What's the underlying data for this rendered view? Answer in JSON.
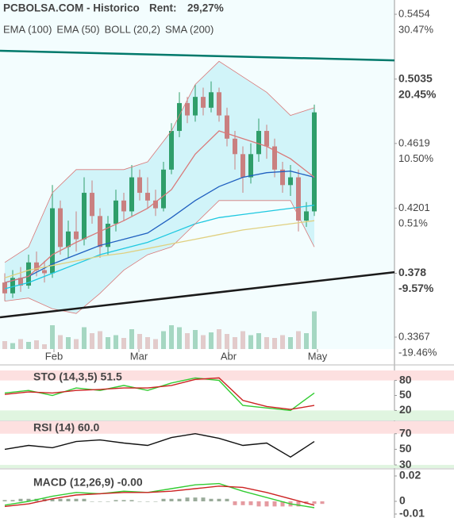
{
  "header": {
    "title": "PCBOLSA.COM - Historico",
    "rent_label": "Rent:",
    "rent_value": "29,27%"
  },
  "chart_data": [
    {
      "type": "candlestick",
      "xlim": [
        -0.6,
        49.1
      ],
      "open": [
        0.372,
        0.365,
        0.375,
        0.37,
        0.385,
        0.38,
        0.378,
        0.42,
        0.395,
        0.405,
        0.4,
        0.43,
        0.415,
        0.395,
        0.41,
        0.425,
        0.418,
        0.44,
        0.43,
        0.425,
        0.42,
        0.445,
        0.47,
        0.488,
        0.48,
        0.492,
        0.485,
        0.495,
        0.48,
        0.465,
        0.455,
        0.44,
        0.455,
        0.47,
        0.46,
        0.445,
        0.435,
        0.44,
        0.412,
        0.418
      ],
      "high": [
        0.378,
        0.38,
        0.382,
        0.39,
        0.392,
        0.386,
        0.435,
        0.425,
        0.412,
        0.418,
        0.44,
        0.438,
        0.42,
        0.415,
        0.432,
        0.43,
        0.448,
        0.445,
        0.44,
        0.432,
        0.45,
        0.475,
        0.495,
        0.492,
        0.5,
        0.498,
        0.502,
        0.498,
        0.485,
        0.47,
        0.46,
        0.462,
        0.478,
        0.474,
        0.465,
        0.45,
        0.448,
        0.445,
        0.424,
        0.487
      ],
      "low": [
        0.36,
        0.362,
        0.366,
        0.368,
        0.376,
        0.372,
        0.375,
        0.39,
        0.388,
        0.392,
        0.396,
        0.41,
        0.388,
        0.39,
        0.405,
        0.412,
        0.415,
        0.425,
        0.42,
        0.415,
        0.418,
        0.442,
        0.466,
        0.475,
        0.476,
        0.48,
        0.482,
        0.476,
        0.46,
        0.445,
        0.43,
        0.436,
        0.45,
        0.452,
        0.44,
        0.43,
        0.428,
        0.405,
        0.408,
        0.415
      ],
      "close": [
        0.365,
        0.375,
        0.37,
        0.385,
        0.38,
        0.378,
        0.42,
        0.395,
        0.405,
        0.4,
        0.43,
        0.415,
        0.395,
        0.41,
        0.425,
        0.418,
        0.44,
        0.43,
        0.425,
        0.42,
        0.445,
        0.47,
        0.488,
        0.48,
        0.492,
        0.485,
        0.495,
        0.48,
        0.465,
        0.455,
        0.44,
        0.455,
        0.47,
        0.46,
        0.445,
        0.435,
        0.44,
        0.412,
        0.418,
        0.482
      ],
      "up_color": "#2f9e6a",
      "down_color": "#c98080",
      "volume": {
        "ylim": [
          0,
          100
        ],
        "values": [
          20,
          15,
          25,
          18,
          22,
          12,
          60,
          35,
          30,
          25,
          55,
          40,
          45,
          30,
          35,
          28,
          50,
          38,
          30,
          25,
          45,
          60,
          55,
          40,
          48,
          35,
          42,
          50,
          38,
          30,
          45,
          35,
          40,
          30,
          28,
          35,
          30,
          45,
          40,
          95
        ]
      },
      "ylim": [
        0.3367,
        0.5454
      ],
      "yticks": [
        0.5454,
        0.5035,
        0.4619,
        0.4201,
        0.378,
        0.3367
      ],
      "y2lim": [
        -19.46,
        30.47
      ],
      "y2ticks": [
        {
          "value": 30.47,
          "label": "30.47%"
        },
        {
          "value": 20.45,
          "label": "20.45%"
        },
        {
          "value": 10.5,
          "label": "10.50%"
        },
        {
          "value": 0.51,
          "label": "0.51%"
        },
        {
          "value": -9.57,
          "label": "-9.57%"
        },
        {
          "value": -19.46,
          "label": "-19.46%"
        }
      ],
      "xticks": [
        {
          "value": 6.2,
          "label": "Feb"
        },
        {
          "value": 16.9,
          "label": "Mar"
        },
        {
          "value": 28.2,
          "label": "Abr"
        },
        {
          "value": 39.4,
          "label": "May"
        }
      ],
      "overlays": [
        {
          "name": "EMA (100)",
          "color": "#1ec8e0",
          "x": [
            0,
            3,
            6,
            9,
            12,
            15,
            18,
            21,
            24,
            27,
            30,
            33,
            36,
            39
          ],
          "values": [
            0.368,
            0.372,
            0.378,
            0.384,
            0.39,
            0.394,
            0.398,
            0.404,
            0.41,
            0.414,
            0.416,
            0.418,
            0.42,
            0.422
          ]
        },
        {
          "name": "EMA (50)",
          "color": "#2060c0",
          "x": [
            0,
            3,
            6,
            9,
            12,
            15,
            18,
            21,
            24,
            27,
            30,
            33,
            36,
            39
          ],
          "values": [
            0.372,
            0.376,
            0.384,
            0.39,
            0.396,
            0.4,
            0.404,
            0.414,
            0.425,
            0.434,
            0.44,
            0.443,
            0.444,
            0.44
          ]
        },
        {
          "name": "BOLL (20,2)",
          "color": "#d97a7a",
          "x": [
            0,
            3,
            6,
            9,
            12,
            15,
            18,
            21,
            24,
            27,
            30,
            33,
            36,
            39
          ],
          "values": [
            0.372,
            0.376,
            0.39,
            0.398,
            0.405,
            0.412,
            0.42,
            0.432,
            0.455,
            0.47,
            0.465,
            0.46,
            0.452,
            0.44
          ],
          "upper": [
            0.385,
            0.395,
            0.43,
            0.445,
            0.445,
            0.445,
            0.45,
            0.47,
            0.5,
            0.515,
            0.505,
            0.495,
            0.48,
            0.485
          ],
          "lower": [
            0.36,
            0.362,
            0.355,
            0.352,
            0.365,
            0.38,
            0.39,
            0.395,
            0.41,
            0.425,
            0.425,
            0.425,
            0.425,
            0.395
          ]
        },
        {
          "name": "SMA (200)",
          "color": "#e0d080",
          "x": [
            0,
            3,
            6,
            9,
            12,
            15,
            18,
            21,
            24,
            27,
            30,
            33,
            36,
            39
          ],
          "values": [
            0.375,
            0.38,
            0.383,
            0.386,
            0.389,
            0.391,
            0.394,
            0.397,
            0.4,
            0.403,
            0.406,
            0.408,
            0.41,
            0.412
          ]
        }
      ],
      "trendlines": [
        {
          "color": "#00796b",
          "values": [
            0.5218,
            0.5156
          ]
        },
        {
          "color": "#1a1a1a",
          "values": [
            0.3495,
            0.3787
          ]
        }
      ]
    },
    {
      "type": "line",
      "title": "STO (14,3,5) 51.5",
      "xlim": [
        -0.6,
        49.1
      ],
      "ylim": [
        0,
        100
      ],
      "yticks": [
        80,
        50,
        20
      ],
      "zones": [
        {
          "from": 80,
          "to": 100,
          "color": "#fde0e0"
        },
        {
          "from": 0,
          "to": 20,
          "color": "#e0f5e0"
        }
      ],
      "series": [
        {
          "color": "#33cc33",
          "x": [
            0,
            3,
            6,
            9,
            12,
            15,
            18,
            21,
            24,
            27,
            30,
            33,
            36,
            39
          ],
          "values": [
            55,
            60,
            50,
            65,
            60,
            70,
            60,
            75,
            85,
            80,
            30,
            25,
            20,
            55
          ]
        },
        {
          "color": "#cc2222",
          "x": [
            0,
            3,
            6,
            9,
            12,
            15,
            18,
            21,
            24,
            27,
            30,
            33,
            36,
            39
          ],
          "values": [
            52,
            57,
            55,
            60,
            62,
            65,
            65,
            70,
            82,
            85,
            40,
            28,
            22,
            30
          ]
        }
      ]
    },
    {
      "type": "line",
      "title": "RSI (14) 60.0",
      "xlim": [
        -0.6,
        49.1
      ],
      "ylim": [
        26,
        86
      ],
      "yticks": [
        70,
        50,
        30
      ],
      "zones": [
        {
          "from": 70,
          "to": 86,
          "color": "#fde0e0"
        },
        {
          "from": 26,
          "to": 30,
          "color": "#e0f5e0"
        }
      ],
      "series": [
        {
          "color": "#111111",
          "x": [
            0,
            3,
            6,
            9,
            12,
            15,
            18,
            21,
            24,
            27,
            30,
            33,
            36,
            39
          ],
          "values": [
            50,
            55,
            52,
            60,
            62,
            58,
            55,
            65,
            70,
            64,
            55,
            58,
            40,
            60
          ]
        }
      ]
    },
    {
      "type": "macd",
      "title": "MACD (12,26,9) -0.00",
      "xlim": [
        -0.6,
        49.1
      ],
      "ylim": [
        -0.01,
        0.02
      ],
      "yticks": [
        0.02,
        0,
        -0.01
      ],
      "histogram": {
        "pos_color": "#9aab9a",
        "neg_color": "#e59aa0",
        "x": [
          0,
          3,
          6,
          9,
          12,
          15,
          18,
          21,
          24,
          27,
          30,
          33,
          36,
          39
        ],
        "values": [
          0.001,
          0.002,
          0.002,
          0.002,
          0,
          0.001,
          0,
          0.002,
          0.003,
          0.002,
          -0.003,
          -0.004,
          -0.004,
          -0.002
        ]
      },
      "series": [
        {
          "color": "#33cc33",
          "x": [
            0,
            3,
            6,
            9,
            12,
            15,
            18,
            21,
            24,
            27,
            30,
            33,
            36,
            39
          ],
          "values": [
            -0.003,
            0,
            0.004,
            0.007,
            0.006,
            0.008,
            0.007,
            0.01,
            0.013,
            0.014,
            0.008,
            0.003,
            -0.002,
            -0.005
          ]
        },
        {
          "color": "#cc2222",
          "x": [
            0,
            3,
            6,
            9,
            12,
            15,
            18,
            21,
            24,
            27,
            30,
            33,
            36,
            39
          ],
          "values": [
            -0.004,
            -0.002,
            0.002,
            0.005,
            0.006,
            0.007,
            0.007,
            0.008,
            0.01,
            0.012,
            0.011,
            0.007,
            0.002,
            -0.003
          ]
        }
      ]
    }
  ]
}
